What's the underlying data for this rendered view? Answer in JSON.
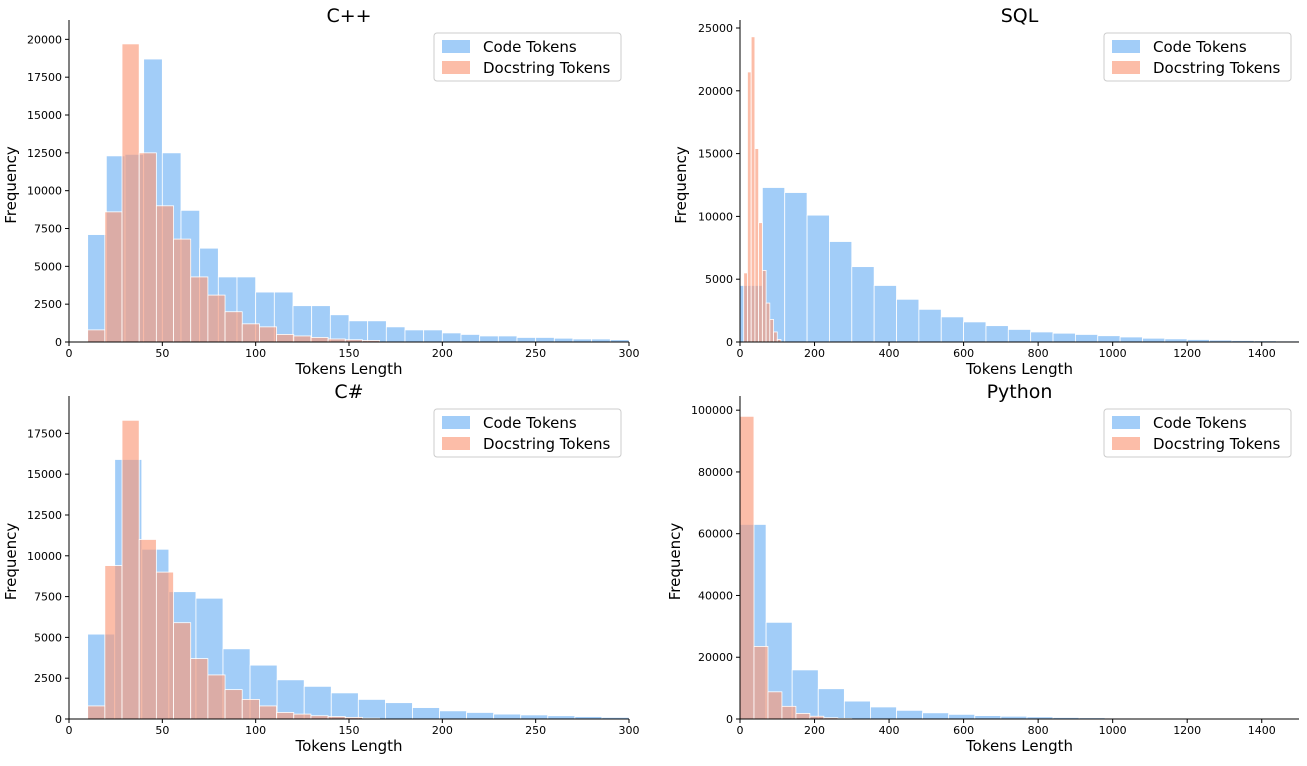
{
  "colors": {
    "code": "#7ab8f5",
    "docstring": "#fb9a7a",
    "overlap": "#cba2a6"
  },
  "chart_data": [
    {
      "type": "bar",
      "title": "C++",
      "xlabel": "Tokens Length",
      "ylabel": "Frequency",
      "xlim": [
        0,
        300
      ],
      "ylim": [
        0,
        20750
      ],
      "xticks": [
        "0",
        "50",
        "100",
        "150",
        "200",
        "250",
        "300"
      ],
      "yticks": [
        "0",
        "2500",
        "5000",
        "7500",
        "10000",
        "12500",
        "15000",
        "17500",
        "20000"
      ],
      "legend": [
        "Code Tokens",
        "Docstring Tokens"
      ],
      "legend_position": "top-right",
      "series": [
        {
          "name": "Code Tokens",
          "bin_edges": [
            10,
            20,
            30,
            40,
            50,
            60,
            70,
            80,
            90,
            100,
            110,
            120,
            130,
            140,
            150,
            160,
            170,
            180,
            190,
            200,
            210,
            220,
            230,
            240,
            250,
            260,
            270,
            280,
            290,
            300
          ],
          "values": [
            7100,
            12300,
            12400,
            18700,
            12500,
            8700,
            6200,
            4300,
            4300,
            3300,
            3300,
            2400,
            2400,
            1800,
            1400,
            1400,
            1000,
            800,
            800,
            600,
            500,
            400,
            400,
            300,
            300,
            250,
            200,
            200,
            150
          ]
        },
        {
          "name": "Docstring Tokens",
          "bin_edges": [
            10,
            19.2,
            28.4,
            37.6,
            46.8,
            56,
            65.2,
            74.4,
            83.6,
            92.8,
            102,
            111.2,
            120.4,
            129.6,
            138.8,
            148,
            157.2,
            166.4
          ],
          "values": [
            800,
            8600,
            19700,
            12500,
            9000,
            6800,
            4300,
            3100,
            2000,
            1200,
            1000,
            500,
            400,
            300,
            200,
            150,
            100
          ]
        }
      ]
    },
    {
      "type": "bar",
      "title": "SQL",
      "xlabel": "Tokens Length",
      "ylabel": "Frequency",
      "xlim": [
        0,
        1500
      ],
      "ylim": [
        0,
        25000
      ],
      "xticks": [
        "0",
        "200",
        "400",
        "600",
        "800",
        "1000",
        "1200",
        "1400"
      ],
      "yticks": [
        "0",
        "5000",
        "10000",
        "15000",
        "20000",
        "25000"
      ],
      "legend": [
        "Code Tokens",
        "Docstring Tokens"
      ],
      "legend_position": "top-right",
      "series": [
        {
          "name": "Code Tokens",
          "bin_edges": [
            0,
            60,
            120,
            180,
            240,
            300,
            360,
            420,
            480,
            540,
            600,
            660,
            720,
            780,
            840,
            900,
            960,
            1020,
            1080,
            1140,
            1200,
            1260,
            1320,
            1380,
            1440,
            1500
          ],
          "values": [
            4500,
            12300,
            11900,
            10100,
            8000,
            6000,
            4500,
            3400,
            2600,
            2000,
            1600,
            1300,
            1000,
            800,
            700,
            600,
            500,
            400,
            300,
            250,
            200,
            150,
            120,
            100,
            80
          ]
        },
        {
          "name": "Docstring Tokens",
          "bin_edges": [
            10,
            20,
            30,
            40,
            50,
            60,
            70,
            80,
            90,
            100,
            110
          ],
          "values": [
            5500,
            21500,
            24300,
            15400,
            9500,
            5700,
            3100,
            1800,
            800,
            200
          ]
        }
      ]
    },
    {
      "type": "bar",
      "title": "C#",
      "xlabel": "Tokens Length",
      "ylabel": "Frequency",
      "xlim": [
        0,
        300
      ],
      "ylim": [
        0,
        19300
      ],
      "xticks": [
        "0",
        "50",
        "100",
        "150",
        "200",
        "250",
        "300"
      ],
      "yticks": [
        "0",
        "2500",
        "5000",
        "7500",
        "10000",
        "12500",
        "15000",
        "17500"
      ],
      "legend": [
        "Code Tokens",
        "Docstring Tokens"
      ],
      "legend_position": "top-right",
      "series": [
        {
          "name": "Code Tokens",
          "bin_edges": [
            10,
            24.5,
            39,
            53.5,
            68,
            82.5,
            97,
            111.5,
            126,
            140.5,
            155,
            169.5,
            184,
            198.5,
            213,
            227.5,
            242,
            256.5,
            271,
            285.5,
            300
          ],
          "values": [
            5200,
            15900,
            10400,
            7800,
            7400,
            4300,
            3300,
            2400,
            2000,
            1600,
            1200,
            1000,
            700,
            500,
            400,
            300,
            250,
            200,
            150,
            100
          ]
        },
        {
          "name": "Docstring Tokens",
          "bin_edges": [
            10,
            19.2,
            28.4,
            37.6,
            46.8,
            56,
            65.2,
            74.4,
            83.6,
            92.8,
            102,
            111.2,
            120.4,
            129.6,
            138.8,
            148,
            157.2,
            166.4
          ],
          "values": [
            800,
            9400,
            18300,
            11000,
            9000,
            5900,
            3700,
            2700,
            1800,
            1200,
            800,
            400,
            300,
            200,
            150,
            100,
            50
          ]
        }
      ]
    },
    {
      "type": "bar",
      "title": "Python",
      "xlabel": "Tokens Length",
      "ylabel": "Frequency",
      "xlim": [
        0,
        1500
      ],
      "ylim": [
        0,
        102000
      ],
      "xticks": [
        "0",
        "200",
        "400",
        "600",
        "800",
        "1000",
        "1200",
        "1400"
      ],
      "yticks": [
        "0",
        "20000",
        "40000",
        "60000",
        "80000",
        "100000"
      ],
      "legend": [
        "Code Tokens",
        "Docstring Tokens"
      ],
      "legend_position": "top-right",
      "series": [
        {
          "name": "Code Tokens",
          "bin_edges": [
            0,
            70,
            140,
            210,
            280,
            350,
            420,
            490,
            560,
            630,
            700,
            770,
            840,
            910,
            980,
            1050,
            1120,
            1190,
            1260,
            1330,
            1400,
            1470
          ],
          "values": [
            63000,
            31300,
            15900,
            9800,
            5800,
            3900,
            2800,
            2000,
            1500,
            1100,
            900,
            700,
            500,
            400,
            300,
            250,
            200,
            150,
            120,
            100,
            80
          ]
        },
        {
          "name": "Docstring Tokens",
          "bin_edges": [
            0,
            37.5,
            75,
            112.5,
            150,
            187.5,
            225,
            262.5,
            300
          ],
          "values": [
            98000,
            23500,
            8800,
            4100,
            1800,
            900,
            400,
            200
          ]
        }
      ]
    }
  ]
}
